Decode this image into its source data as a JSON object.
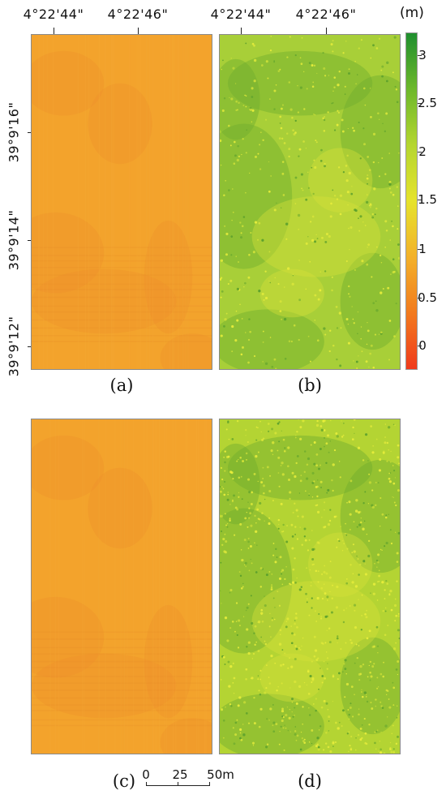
{
  "axes": {
    "top_labels_left": [
      "4°22'44\"",
      "4°22'46\""
    ],
    "top_labels_right": [
      "4°22'44\"",
      "4°22'46\""
    ],
    "left_labels": [
      "39°9'16\"",
      "39°9'14\"",
      "39°9'12\""
    ]
  },
  "colorbar": {
    "unit": "(m)",
    "ticks": [
      "3",
      "2.5",
      "2",
      "1.5",
      "1",
      "0.5",
      "0"
    ],
    "colors": [
      "#1f8f2e",
      "#6db82c",
      "#b5d630",
      "#e6e32c",
      "#f3b12a",
      "#f27a1e",
      "#f03a1c"
    ]
  },
  "panels": {
    "a": {
      "caption": "(a)",
      "base_color": "#f3a32c"
    },
    "b": {
      "caption": "(b)",
      "base_color": "#a8cf38"
    },
    "c": {
      "caption": "(c)",
      "base_color": "#f3a32c"
    },
    "d": {
      "caption": "(d)",
      "base_color": "#b4d433"
    }
  },
  "scalebar": {
    "labels": [
      "0",
      "25",
      "50m"
    ]
  }
}
